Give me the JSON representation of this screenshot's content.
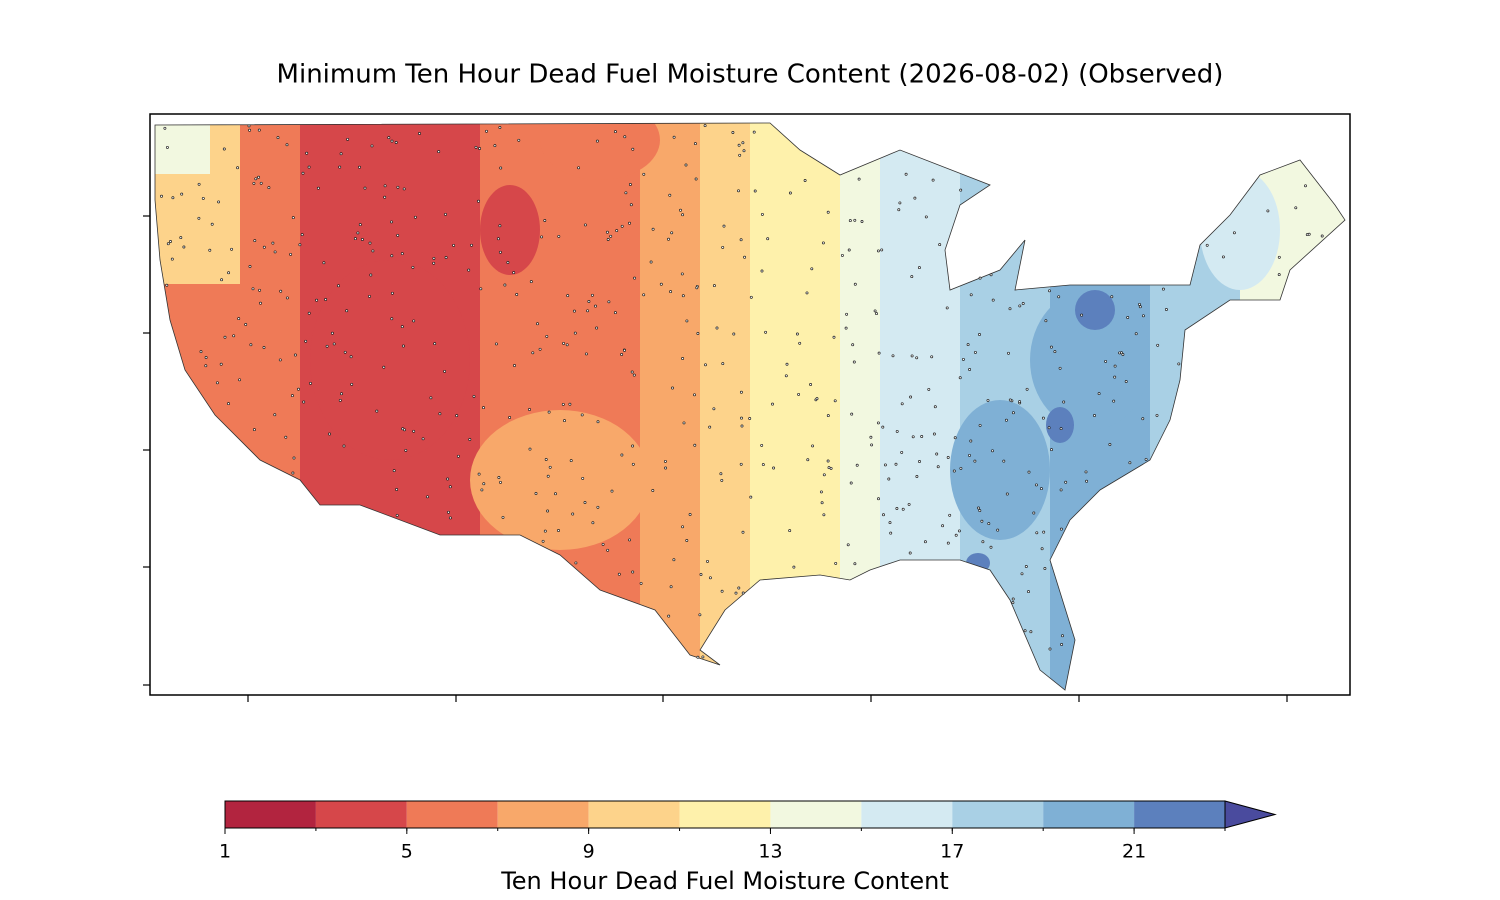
{
  "title": "Minimum Ten Hour Dead Fuel Moisture Content (2026-08-02) (Observed)",
  "colorbar": {
    "label": "Ten Hour Dead Fuel Moisture Content",
    "levels": [
      1,
      3,
      5,
      7,
      9,
      11,
      13,
      15,
      17,
      19,
      21,
      23
    ],
    "colors": [
      "#b2243f",
      "#d6474a",
      "#ef7a57",
      "#f8a86a",
      "#fdd38b",
      "#fef1ab",
      "#f2f8e0",
      "#d4eaf2",
      "#a9d0e5",
      "#7fb0d5",
      "#5c80bd"
    ],
    "extend_color": "#4a4b9e",
    "ticks": [
      1,
      5,
      9,
      13,
      17,
      21
    ]
  }
}
